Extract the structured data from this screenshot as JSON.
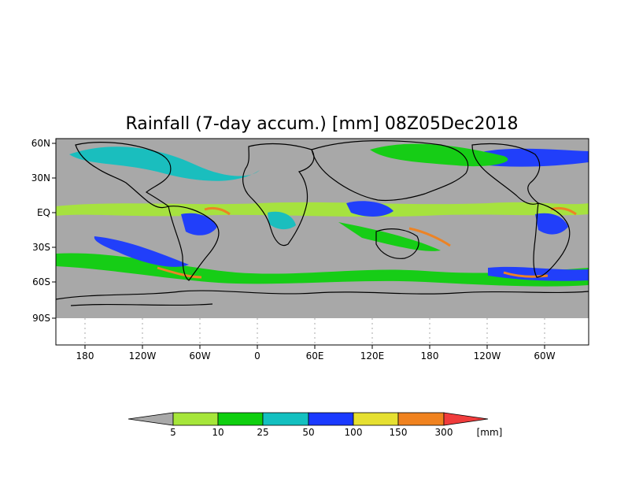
{
  "title": "Rainfall (7-day accum.) [mm] 08Z05Dec2018",
  "lat_labels": [
    "60N",
    "30N",
    "EQ",
    "30S",
    "60S",
    "90S"
  ],
  "lon_labels": [
    "180",
    "120W",
    "60W",
    "0",
    "60E",
    "120E",
    "180",
    "120W",
    "60W"
  ],
  "colorbar": {
    "unit": "[mm]",
    "thresholds": [
      "5",
      "10",
      "25",
      "50",
      "100",
      "150",
      "300"
    ],
    "colors": [
      "#a9a9a9",
      "#a6e63a",
      "#0fcf0f",
      "#13c0c0",
      "#1a3aff",
      "#e6e031",
      "#f0821f",
      "#f03c3c"
    ]
  },
  "map_colors": {
    "no_rain": "#a8a8a8",
    "land_outline": "#000000",
    "below_domain": "#ffffff"
  }
}
